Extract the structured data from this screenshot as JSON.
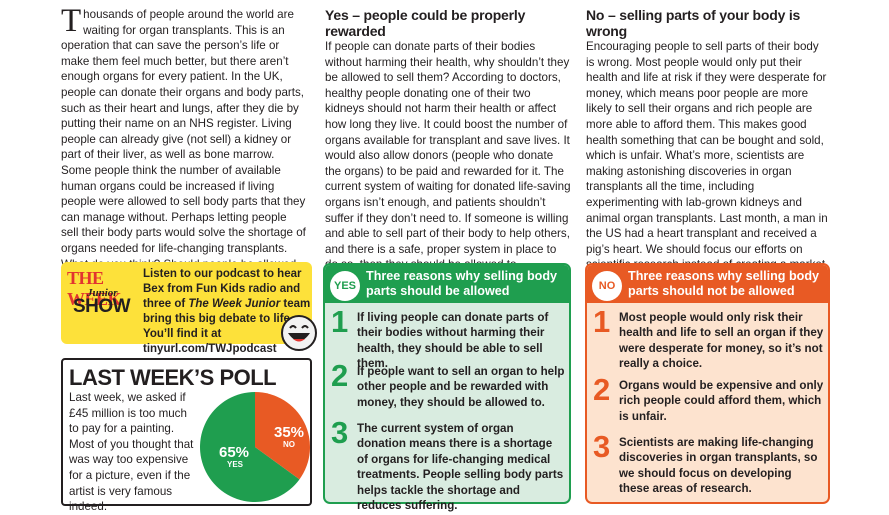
{
  "intro": {
    "dropcap": "T",
    "text": "housands of people around the world are waiting for organ transplants. This is an operation that can save the person’s life or make them feel much better, but there aren’t enough organs for every patient. In the UK, people can donate their organs and body parts, such as their heart and lungs, after they die by putting their name on an NHS register. Living people can already give (not sell) a kidney or part of their liver, as well as bone marrow. Some people think the number of available human organs could be increased if living people were allowed to sell body parts that they can manage without. Perhaps letting people sell their body parts would solve the shortage of organs needed for life-changing transplants. What do you think? Should people be allowed to sell body parts?"
  },
  "yes_column": {
    "heading": "Yes – people could be properly rewarded",
    "text": "If people can donate parts of their bodies without harming their health, why shouldn’t they be allowed to sell them? According to doctors, healthy people donating one of their two kidneys should not harm their health or affect how long they live. It could boost the number of organs available for transplant and save lives. It would also allow donors (people who donate the organs) to be paid and rewarded for it. The current system of waiting for donated life-saving organs isn’t enough, and patients shouldn’t suffer if they don’t need to. If someone is willing and able to sell part of their body to help others, and there is a safe, proper system in place to do so, then they should be allowed to."
  },
  "no_column": {
    "heading": "No – selling parts of your body is wrong",
    "text": "Encouraging people to sell parts of their body is wrong. Most people would only put their health and life at risk if they were desperate for money, which means poor people are more likely to sell their organs and rich people are more able to afford them. This makes good health something that can be bought and sold, which is unfair. What’s more, scientists are making astonishing discoveries in organ transplants all the time, including experimenting with lab-grown kidneys and animal organ transplants. Last month, a man in the US had a heart transplant and received a pig’s heart. We should focus our efforts on scientific research instead of creating a market for body parts, which could be difficult to check or control."
  },
  "podcast": {
    "logo_line1": "THE WEEK",
    "logo_line2": "Junior",
    "logo_line3": "SHOW",
    "text_part1": "Listen to our podcast to hear Bex from Fun Kids radio and three of ",
    "text_italic": "The Week Junior",
    "text_part2": " team bring this big debate to life. You’ll find it at tinyurl.com/TWJpodcast"
  },
  "poll": {
    "title": "LAST WEEK’S POLL",
    "text": "Last week, we asked if £45 million is too much to pay for a painting. Most of you thought that was way too expensive for a picture, even if the artist is very famous indeed.",
    "yes_label": "YES",
    "no_label": "NO",
    "yes_percent_text": "65%",
    "no_percent_text": "35%",
    "yes_value": 65,
    "no_value": 35,
    "yes_color": "#1f9e4f",
    "no_color": "#e85a24"
  },
  "yes_reasons": {
    "badge": "YES",
    "title": "Three reasons why selling body parts should be allowed",
    "items": [
      {
        "num": "1",
        "text": "If living people can donate parts of their bodies without harming their health, they should be able to sell them."
      },
      {
        "num": "2",
        "text": "If people want to sell an organ to help other people and be rewarded with money, they should be allowed to."
      },
      {
        "num": "3",
        "text": "The current system of organ donation means there is a shortage of organs for life-changing medical treatments. People selling body parts helps tackle the shortage and reduces suffering."
      }
    ]
  },
  "no_reasons": {
    "badge": "NO",
    "title": "Three reasons why selling body parts should not be allowed",
    "items": [
      {
        "num": "1",
        "text": "Most people would only risk their health and life to sell an organ if they were desperate for money, so it’s not really a choice."
      },
      {
        "num": "2",
        "text": "Organs would be expensive and only rich people could afford them, which is unfair."
      },
      {
        "num": "3",
        "text": "Scientists are making life-changing discoveries in organ transplants, so we should focus on developing these areas of research."
      }
    ]
  },
  "colors": {
    "green": "#1f9e4f",
    "orange": "#e85a24",
    "yellow": "#fde13a"
  }
}
